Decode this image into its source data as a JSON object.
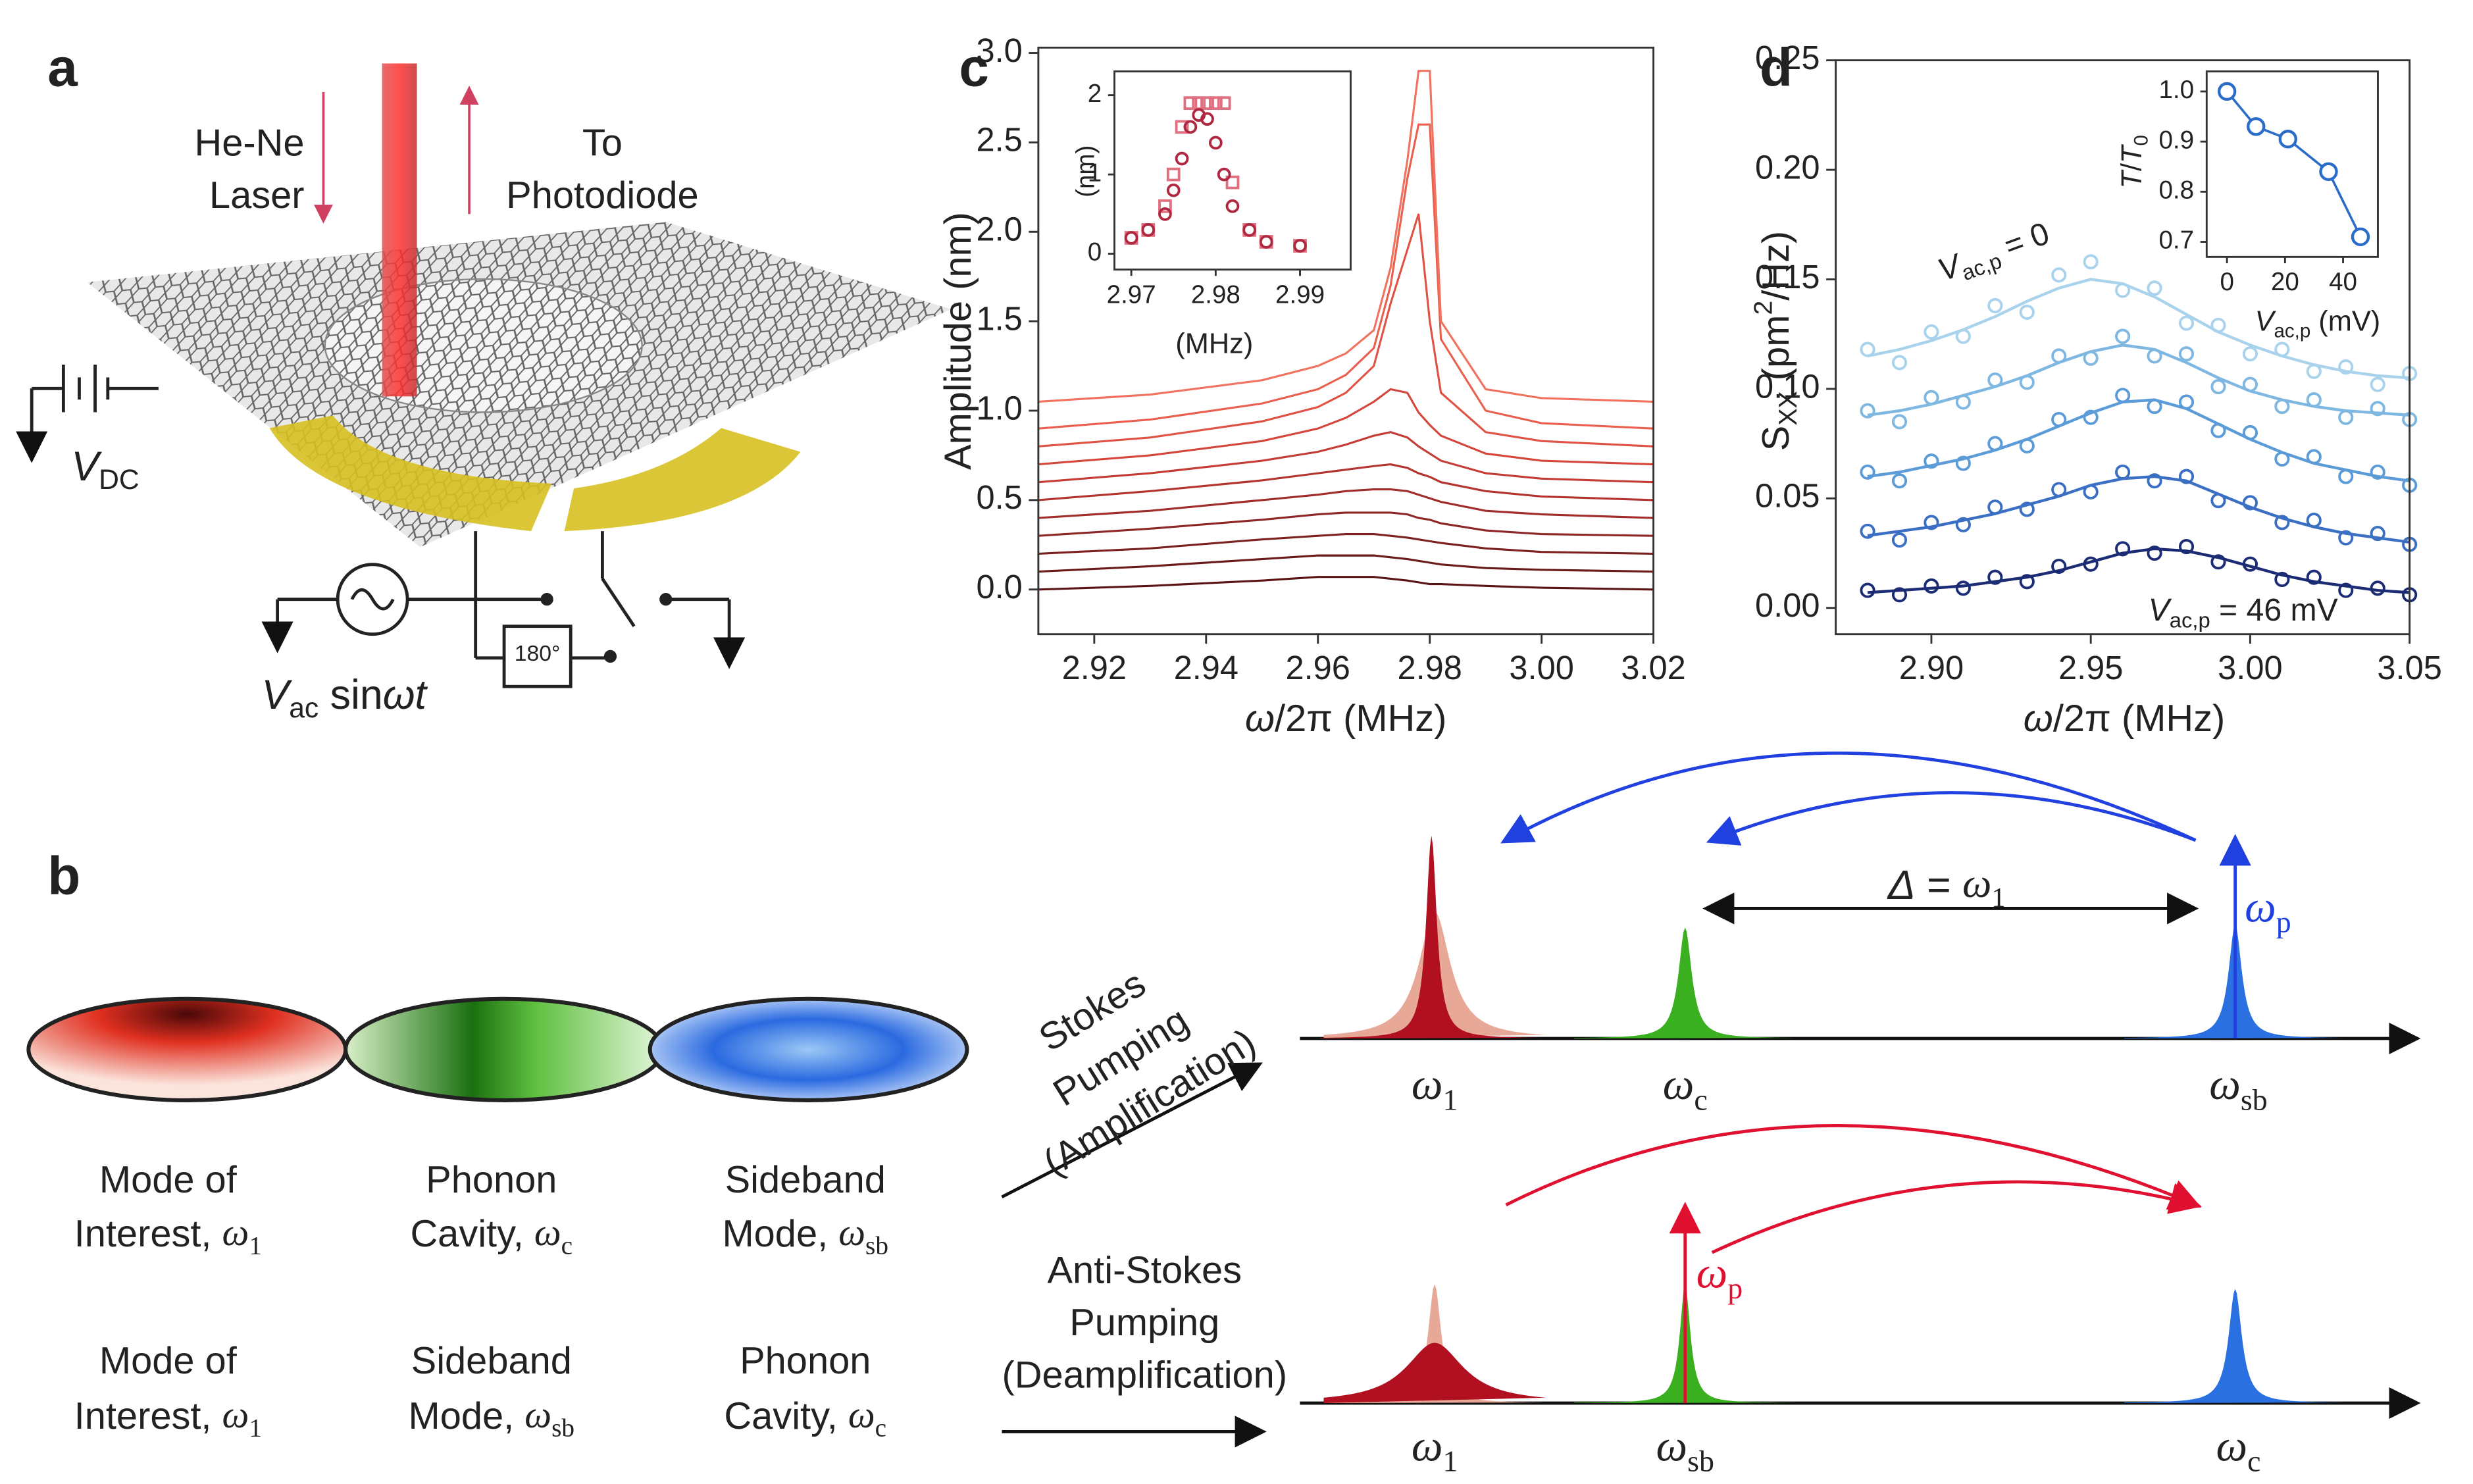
{
  "chart_data": [
    {
      "type": "line",
      "panel_label": "c",
      "x": [
        2.91,
        2.93,
        2.95,
        2.96,
        2.965,
        2.97,
        2.973,
        2.976,
        2.978,
        2.98,
        2.982,
        2.99,
        3.0,
        3.02
      ],
      "series": [
        {
          "color": "#5a1414",
          "values": [
            0,
            0.02,
            0.05,
            0.07,
            0.07,
            0.07,
            0.06,
            0.05,
            0.04,
            0.03,
            0.03,
            0.02,
            0.01,
            0
          ]
        },
        {
          "color": "#6b1a1a",
          "values": [
            0.1,
            0.13,
            0.17,
            0.19,
            0.19,
            0.19,
            0.18,
            0.17,
            0.16,
            0.15,
            0.14,
            0.12,
            0.11,
            0.1
          ]
        },
        {
          "color": "#7d2020",
          "values": [
            0.2,
            0.23,
            0.28,
            0.3,
            0.31,
            0.31,
            0.3,
            0.29,
            0.28,
            0.27,
            0.26,
            0.23,
            0.21,
            0.2
          ]
        },
        {
          "color": "#8f2626",
          "values": [
            0.3,
            0.34,
            0.39,
            0.42,
            0.43,
            0.43,
            0.43,
            0.42,
            0.4,
            0.39,
            0.37,
            0.33,
            0.31,
            0.3
          ]
        },
        {
          "color": "#a12d2a",
          "values": [
            0.4,
            0.44,
            0.5,
            0.53,
            0.55,
            0.56,
            0.56,
            0.55,
            0.53,
            0.51,
            0.49,
            0.44,
            0.42,
            0.4
          ]
        },
        {
          "color": "#b3342f",
          "values": [
            0.5,
            0.55,
            0.61,
            0.65,
            0.67,
            0.69,
            0.7,
            0.68,
            0.65,
            0.63,
            0.6,
            0.55,
            0.52,
            0.5
          ]
        },
        {
          "color": "#c43c35",
          "values": [
            0.6,
            0.65,
            0.72,
            0.77,
            0.81,
            0.86,
            0.88,
            0.85,
            0.8,
            0.76,
            0.72,
            0.65,
            0.62,
            0.6
          ]
        },
        {
          "color": "#d4463b",
          "values": [
            0.7,
            0.75,
            0.83,
            0.9,
            0.96,
            1.05,
            1.12,
            1.1,
            0.99,
            0.92,
            0.86,
            0.76,
            0.72,
            0.7
          ]
        },
        {
          "color": "#e05244",
          "values": [
            0.8,
            0.85,
            0.94,
            1.02,
            1.1,
            1.25,
            1.6,
            1.9,
            2.1,
            1.5,
            1.1,
            0.88,
            0.83,
            0.8
          ]
        },
        {
          "color": "#ea604f",
          "values": [
            0.9,
            0.95,
            1.04,
            1.12,
            1.2,
            1.35,
            1.7,
            2.3,
            2.6,
            2.6,
            1.4,
            1,
            0.93,
            0.9
          ]
        },
        {
          "color": "#f0725f",
          "values": [
            1.05,
            1.09,
            1.17,
            1.25,
            1.32,
            1.45,
            1.8,
            2.4,
            2.9,
            2.9,
            1.5,
            1.12,
            1.07,
            1.05
          ]
        }
      ],
      "xlim": [
        2.91,
        3.02
      ],
      "ylim": [
        -0.25,
        3.03
      ],
      "xticks": [
        2.92,
        2.94,
        2.96,
        2.98,
        {
          "value": 3,
          "label": "3.00"
        },
        3.02
      ],
      "yticks": [
        {
          "value": 0,
          "label": "0.0"
        },
        0.5,
        {
          "value": 1,
          "label": "1.0"
        },
        1.5,
        {
          "value": 2,
          "label": "2.0"
        },
        2.5,
        {
          "value": 3,
          "label": "3.0"
        }
      ],
      "x_label": [
        "ω",
        "/2π (MHz)"
      ],
      "y_label": [
        "Amplitude (nm)"
      ]
    },
    {
      "type": "scatter",
      "x": [
        2.97,
        2.972,
        2.974,
        2.975,
        2.976,
        2.977,
        2.978,
        2.979,
        2.98,
        2.981,
        2.982,
        2.984,
        2.986,
        2.99
      ],
      "series": [
        {
          "color": "#e07080",
          "marker": "square",
          "values": [
            0.2,
            0.3,
            0.6,
            1,
            1.6,
            1.9,
            1.9,
            1.9,
            1.9,
            1.9,
            0.9,
            0.3,
            0.15,
            0.1
          ]
        },
        {
          "color": "#b02840",
          "marker": "circle",
          "values": [
            0.2,
            0.3,
            0.5,
            0.8,
            1.2,
            1.6,
            1.75,
            1.7,
            1.4,
            1,
            0.6,
            0.3,
            0.15,
            0.1
          ]
        }
      ],
      "xlim": [
        2.968,
        2.996
      ],
      "ylim": [
        -0.2,
        2.3
      ],
      "xticks": [
        2.97,
        2.98,
        2.99
      ],
      "yticks": [
        0,
        1,
        2
      ],
      "x_label": [
        "(MHz)"
      ],
      "y_label": [
        "(nm)"
      ]
    },
    {
      "type": "scatter",
      "panel_label": "d",
      "x": [
        2.88,
        2.89,
        2.9,
        2.91,
        2.92,
        2.93,
        2.94,
        2.95,
        2.96,
        2.97,
        2.98,
        2.99,
        3.0,
        3.01,
        3.02,
        3.03,
        3.04,
        3.05
      ],
      "series": [
        {
          "color": "#a9d2ec",
          "marker": "circle",
          "values": [
            0.118,
            0.112,
            0.126,
            0.124,
            0.138,
            0.135,
            0.152,
            0.158,
            0.145,
            0.146,
            0.13,
            0.129,
            0.116,
            0.118,
            0.108,
            0.11,
            0.102,
            0.107
          ],
          "fit": [
            0.115,
            0.118,
            0.122,
            0.127,
            0.133,
            0.14,
            0.146,
            0.15,
            0.148,
            0.142,
            0.134,
            0.126,
            0.12,
            0.115,
            0.111,
            0.108,
            0.106,
            0.105
          ]
        },
        {
          "color": "#7db7e2",
          "marker": "circle",
          "values": [
            0.09,
            0.085,
            0.096,
            0.094,
            0.104,
            0.103,
            0.115,
            0.114,
            0.124,
            0.115,
            0.116,
            0.101,
            0.102,
            0.092,
            0.095,
            0.087,
            0.091,
            0.086
          ],
          "fit": [
            0.088,
            0.09,
            0.093,
            0.097,
            0.101,
            0.106,
            0.112,
            0.117,
            0.12,
            0.118,
            0.112,
            0.105,
            0.099,
            0.095,
            0.092,
            0.09,
            0.089,
            0.088
          ]
        },
        {
          "color": "#5a9bd8",
          "marker": "circle",
          "values": [
            0.062,
            0.058,
            0.067,
            0.066,
            0.075,
            0.074,
            0.086,
            0.087,
            0.097,
            0.092,
            0.094,
            0.081,
            0.08,
            0.068,
            0.069,
            0.06,
            0.062,
            0.056
          ],
          "fit": [
            0.06,
            0.062,
            0.065,
            0.068,
            0.072,
            0.077,
            0.083,
            0.089,
            0.094,
            0.095,
            0.091,
            0.084,
            0.077,
            0.071,
            0.066,
            0.063,
            0.06,
            0.058
          ]
        },
        {
          "color": "#3a6fc4",
          "marker": "circle",
          "values": [
            0.035,
            0.031,
            0.039,
            0.038,
            0.046,
            0.045,
            0.054,
            0.053,
            0.062,
            0.058,
            0.06,
            0.049,
            0.048,
            0.039,
            0.04,
            0.032,
            0.034,
            0.029
          ],
          "fit": [
            0.033,
            0.035,
            0.037,
            0.04,
            0.043,
            0.047,
            0.051,
            0.056,
            0.059,
            0.06,
            0.058,
            0.052,
            0.046,
            0.041,
            0.037,
            0.034,
            0.032,
            0.03
          ]
        },
        {
          "color": "#1c2c74",
          "marker": "circle",
          "values": [
            0.008,
            0.006,
            0.01,
            0.009,
            0.014,
            0.012,
            0.019,
            0.02,
            0.027,
            0.025,
            0.028,
            0.021,
            0.02,
            0.013,
            0.014,
            0.008,
            0.009,
            0.006
          ],
          "fit": [
            0.007,
            0.008,
            0.009,
            0.01,
            0.012,
            0.014,
            0.017,
            0.021,
            0.025,
            0.027,
            0.026,
            0.023,
            0.019,
            0.015,
            0.012,
            0.01,
            0.008,
            0.007
          ]
        }
      ],
      "xlim": [
        2.87,
        3.05
      ],
      "ylim": [
        -0.012,
        0.25
      ],
      "xticks": [
        {
          "value": 2.9,
          "label": "2.90"
        },
        2.95,
        {
          "value": 3,
          "label": "3.00"
        },
        3.05
      ],
      "yticks": [
        {
          "value": 0,
          "label": "0.00"
        },
        0.05,
        {
          "value": 0.1,
          "label": "0.10"
        },
        0.15,
        {
          "value": 0.2,
          "label": "0.20"
        },
        0.25
      ],
      "x_label": [
        "ω",
        "/2π (MHz)"
      ],
      "y_label": [
        "S",
        "XX",
        " (pm",
        "2",
        "/Hz)"
      ],
      "annot_top": [
        "V",
        "ac,p",
        " = 0"
      ],
      "annot_bottom": [
        "V",
        "ac,p",
        " = 46 mV"
      ]
    },
    {
      "type": "line",
      "markers": true,
      "x": [
        0,
        10,
        21,
        35,
        46
      ],
      "series": [
        {
          "color": "#2a6cc8",
          "values": [
            1,
            0.93,
            0.905,
            0.84,
            0.71
          ]
        }
      ],
      "xlim": [
        -7,
        52
      ],
      "ylim": [
        0.67,
        1.04
      ],
      "xticks": [
        0,
        20,
        40
      ],
      "yticks": [
        0.7,
        0.8,
        0.9,
        {
          "value": 1,
          "label": "1.0"
        }
      ],
      "x_label": [
        "V",
        "ac,p",
        " (mV)"
      ],
      "y_label": [
        "T",
        "/",
        "T",
        "0"
      ]
    }
  ],
  "panel_a": {
    "label": "a",
    "laser_in": [
      "He-Ne",
      "Laser"
    ],
    "laser_out": [
      "To",
      "Photodiode"
    ],
    "vdc": [
      "V",
      "DC"
    ],
    "vac": [
      "V",
      "ac",
      " sin",
      "ω",
      "t"
    ],
    "phase": "180°"
  },
  "panel_b": {
    "label": "b",
    "modes_row1": [
      {
        "line1": "Mode of",
        "line2": "Interest, ",
        "sym": "ω",
        "sub": "1"
      },
      {
        "line1": "Phonon",
        "line2": "Cavity, ",
        "sym": "ω",
        "sub": "c"
      },
      {
        "line1": "Sideband",
        "line2": "Mode, ",
        "sym": "ω",
        "sub": "sb"
      }
    ],
    "modes_row2": [
      {
        "line1": "Mode of",
        "line2": "Interest, ",
        "sym": "ω",
        "sub": "1"
      },
      {
        "line1": "Sideband",
        "line2": "Mode, ",
        "sym": "ω",
        "sub": "sb"
      },
      {
        "line1": "Phonon",
        "line2": "Cavity, ",
        "sym": "ω",
        "sub": "c"
      }
    ],
    "stokes": [
      "Stokes",
      "Pumping",
      "(Amplification)"
    ],
    "anti_stokes": [
      "Anti-Stokes",
      "Pumping",
      "(Deamplification)"
    ],
    "stokes_peaks": [
      {
        "sym": "ω",
        "sub": "1"
      },
      {
        "sym": "ω",
        "sub": "c"
      },
      {
        "sym": "ω",
        "sub": "sb"
      }
    ],
    "anti_peaks": [
      {
        "sym": "ω",
        "sub": "1"
      },
      {
        "sym": "ω",
        "sub": "sb"
      },
      {
        "sym": "ω",
        "sub": "c"
      }
    ],
    "delta": {
      "sym": "Δ",
      "eq": " = ",
      "rhs": "ω",
      "sub": "1"
    },
    "pump_stokes": {
      "sym": "ω",
      "sub": "p"
    },
    "pump_anti": {
      "sym": "ω",
      "sub": "p"
    }
  }
}
